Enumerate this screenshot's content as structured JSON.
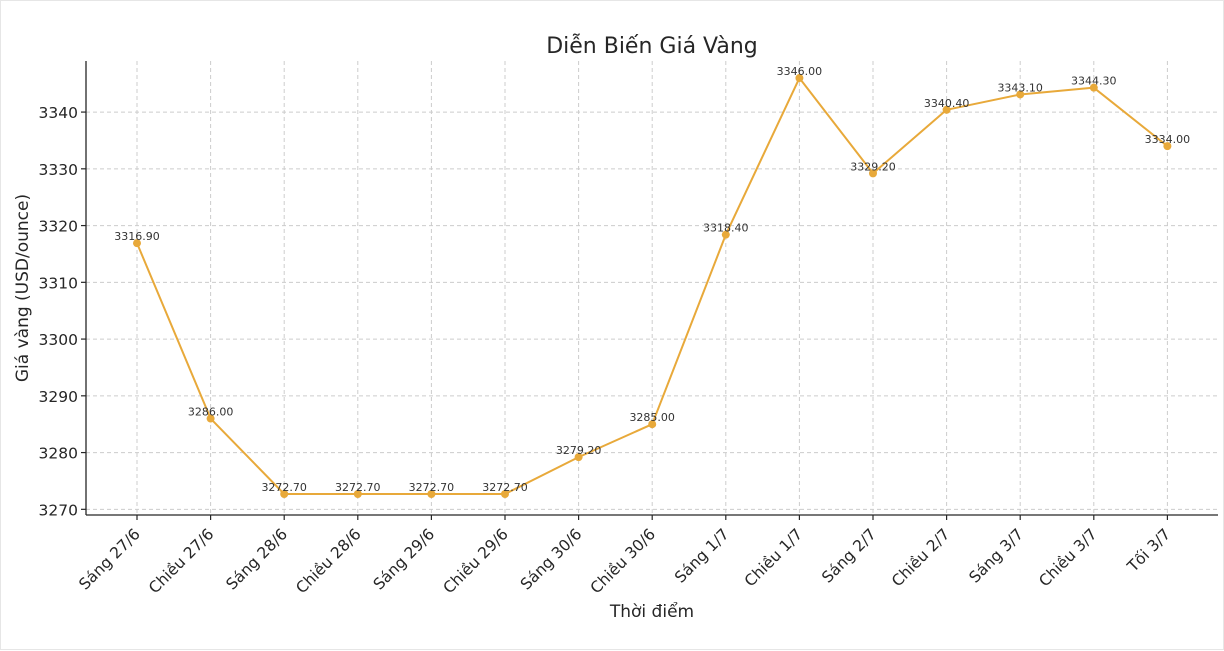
{
  "chart_data": {
    "type": "line",
    "title": "Diễn Biến Giá Vàng",
    "xlabel": "Thời điểm",
    "ylabel": "Giá vàng (USD/ounce)",
    "categories": [
      "Sáng 27/6",
      "Chiều 27/6",
      "Sáng 28/6",
      "Chiều 28/6",
      "Sáng 29/6",
      "Chiều 29/6",
      "Sáng 30/6",
      "Chiều 30/6",
      "Sáng 1/7",
      "Chiều 1/7",
      "Sáng 2/7",
      "Chiều 2/7",
      "Sáng 3/7",
      "Chiều 3/7",
      "Tối 3/7"
    ],
    "values": [
      3316.9,
      3286.0,
      3272.7,
      3272.7,
      3272.7,
      3272.7,
      3279.2,
      3285.0,
      3318.4,
      3346.0,
      3329.2,
      3340.4,
      3343.1,
      3344.3,
      3334.0
    ],
    "data_labels": [
      "3316.90",
      "3286.00",
      "3272.70",
      "3272.70",
      "3272.70",
      "3272.70",
      "3279.20",
      "3285.00",
      "3318.40",
      "3346.00",
      "3329.20",
      "3340.40",
      "3343.10",
      "3344.30",
      "3334.00"
    ],
    "y_ticks": [
      3270,
      3280,
      3290,
      3300,
      3310,
      3320,
      3330,
      3340
    ],
    "ylim": [
      3269,
      3349
    ],
    "grid": true,
    "colors": {
      "line": "#e8a93a",
      "marker": "#e8a93a",
      "grid": "#cccccc",
      "axis": "#262626"
    }
  }
}
